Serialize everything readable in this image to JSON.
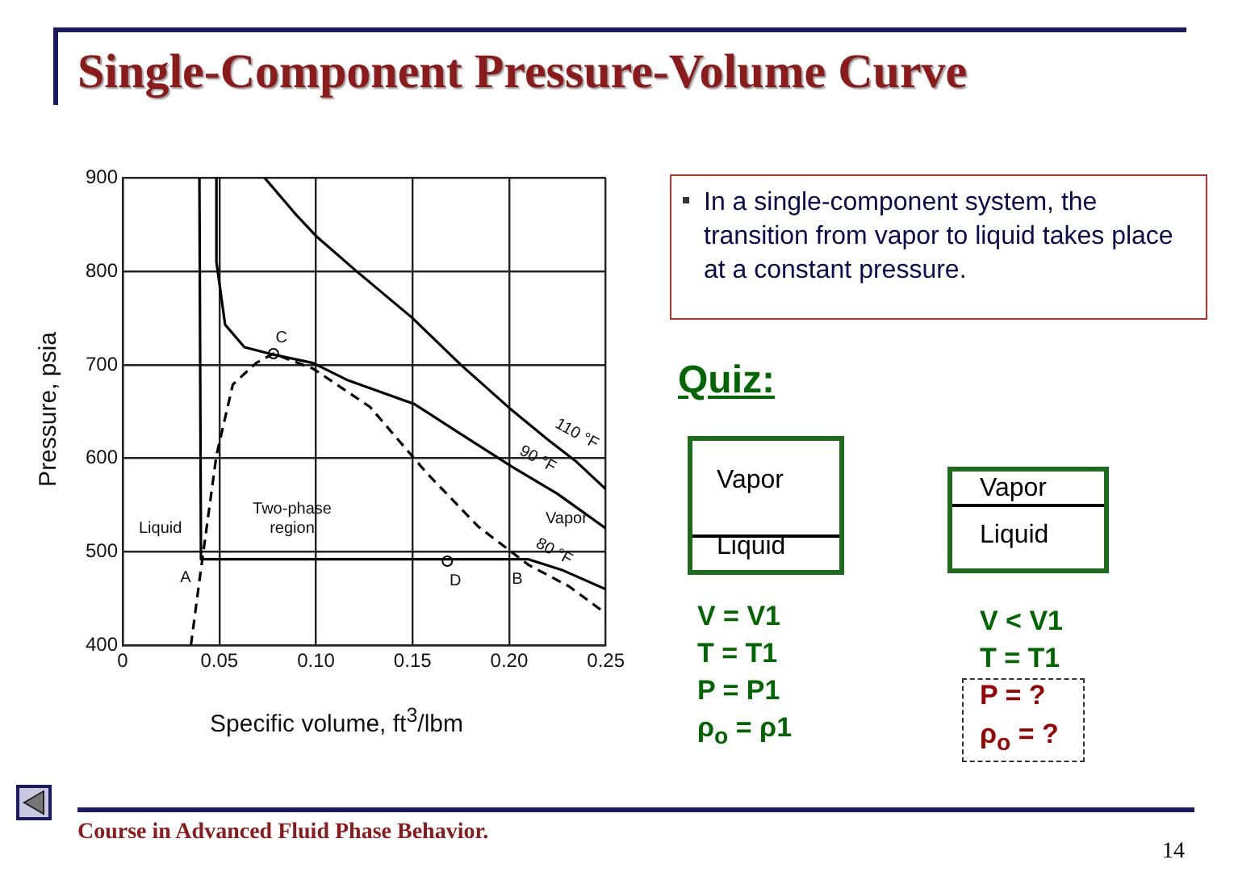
{
  "chart_data": {
    "type": "line",
    "title": "Single-Component Pressure-Volume Curve",
    "xlabel": "Specific volume, ft$^{3}$/lbm",
    "ylabel": "Pressure, psia",
    "xlim": [
      0,
      0.25
    ],
    "xticks": [
      0,
      0.05,
      {
        "value": 0.1,
        "label": "0.10"
      },
      0.15,
      {
        "value": 0.2,
        "label": "0.20"
      },
      0.25
    ],
    "ylim": [
      400,
      900
    ],
    "yticks": [
      400,
      500,
      600,
      700,
      800,
      900
    ],
    "grid": true,
    "legend": false,
    "marker": "none",
    "line_style": "solid",
    "series": [
      {
        "name": "110 °F",
        "color": "#000000",
        "x": [
          0.0735,
          0.09,
          0.1,
          0.12,
          0.15,
          0.175,
          0.2,
          0.22,
          0.235,
          0.25
        ],
        "values": [
          900,
          860,
          838,
          802,
          750,
          700,
          654,
          620,
          596,
          567
        ]
      },
      {
        "name": "90 °F",
        "color": "#000000",
        "x": [
          0.0485,
          0.0485,
          0.053,
          0.063,
          0.078,
          0.0985,
          0.116,
          0.151,
          0.175,
          0.2015,
          0.225,
          0.25
        ],
        "values": [
          900,
          810,
          743,
          719,
          711,
          702,
          684,
          658,
          626,
          591,
          562,
          525
        ]
      },
      {
        "name": "80 °F",
        "color": "#000000",
        "x": [
          0.0397,
          0.0405,
          0.21,
          0.228,
          0.25
        ],
        "values": [
          900,
          492,
          492,
          480,
          460
        ]
      },
      {
        "color": "#000000",
        "line_style": "dashed",
        "x": [
          0.0353,
          0.0397,
          0.0485,
          0.057,
          0.069,
          0.078,
          0.0985,
          0.128,
          0.157,
          0.184,
          0.21,
          0.231,
          0.25
        ],
        "values": [
          400,
          469,
          603,
          679,
          702,
          712,
          696,
          655,
          585,
          527,
          486,
          463,
          434
        ]
      },
      {
        "type": "scatter",
        "marker": "circle",
        "color": "#000000",
        "x": [
          0.078,
          0.168
        ],
        "values": [
          712,
          490
        ]
      }
    ],
    "annotations": [
      "In a single-component system, the transition from vapor to liquid takes place at a constant pressure.",
      "Quiz:",
      "Vapor",
      "Liquid",
      "V = V1",
      "T = T1",
      "P = P1",
      "ρ$_{o}$ = ρ1",
      "Vapor",
      "Liquid",
      "V < V1",
      "T = T1",
      "P = ?",
      "ρ$_{o}$ = ?",
      "Course in Advanced Fluid Phase Behavior.",
      "14",
      {
        "text": "C",
        "x": 0.078,
        "y": 712
      },
      {
        "text": "A",
        "x": 0.04,
        "y": 492
      },
      {
        "text": "D",
        "x": 0.168,
        "y": 490
      },
      {
        "text": "B",
        "x": 0.21,
        "y": 492
      },
      "Liquid",
      "Two-phase region",
      "Vapor"
    ]
  }
}
